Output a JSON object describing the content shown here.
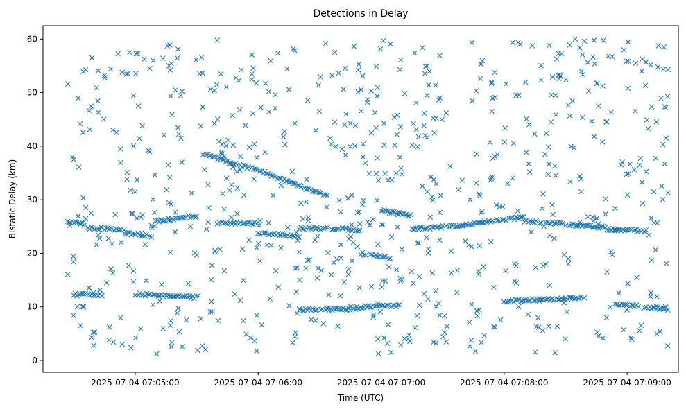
{
  "chart_data": {
    "type": "scatter",
    "title": "Detections in Delay",
    "xlabel": "Time (UTC)",
    "ylabel": "Bistatic Delay (km)",
    "marker": "x",
    "color": "#1f77b4",
    "grid": false,
    "legend": "none",
    "xlim": [
      "2025-07-04 07:04:15",
      "2025-07-04 07:09:25"
    ],
    "ylim": [
      -2.2,
      62.5
    ],
    "x_ticks": [
      "2025-07-04 07:05:00",
      "2025-07-04 07:06:00",
      "2025-07-04 07:07:00",
      "2025-07-04 07:08:00",
      "2025-07-04 07:09:00"
    ],
    "y_ticks": [
      0,
      10,
      20,
      30,
      40,
      50,
      60
    ],
    "x_start": "2025-07-04 07:04:27",
    "x_end": "2025-07-04 07:09:20",
    "tracks": [
      {
        "x": [
          "2025-07-04 07:04:27",
          "2025-07-04 07:04:37"
        ],
        "y": [
          26.0,
          25.2
        ]
      },
      {
        "x": [
          "2025-07-04 07:04:37",
          "2025-07-04 07:04:55"
        ],
        "y": [
          24.8,
          24.4
        ]
      },
      {
        "x": [
          "2025-07-04 07:04:55",
          "2025-07-04 07:05:08"
        ],
        "y": [
          23.8,
          23.2
        ]
      },
      {
        "x": [
          "2025-07-04 07:05:10",
          "2025-07-04 07:05:30"
        ],
        "y": [
          26.0,
          27.0
        ]
      },
      {
        "x": [
          "2025-07-04 07:04:30",
          "2025-07-04 07:04:45"
        ],
        "y": [
          12.3,
          12.3
        ]
      },
      {
        "x": [
          "2025-07-04 07:05:00",
          "2025-07-04 07:05:30"
        ],
        "y": [
          12.4,
          11.8
        ]
      },
      {
        "x": [
          "2025-07-04 07:05:33",
          "2025-07-04 07:06:00"
        ],
        "y": [
          38.5,
          35.5
        ]
      },
      {
        "x": [
          "2025-07-04 07:06:00",
          "2025-07-04 07:06:35"
        ],
        "y": [
          35.5,
          30.5
        ]
      },
      {
        "x": [
          "2025-07-04 07:05:40",
          "2025-07-04 07:06:00"
        ],
        "y": [
          25.7,
          25.6
        ]
      },
      {
        "x": [
          "2025-07-04 07:06:00",
          "2025-07-04 07:06:20"
        ],
        "y": [
          23.8,
          23.2
        ]
      },
      {
        "x": [
          "2025-07-04 07:06:20",
          "2025-07-04 07:06:50"
        ],
        "y": [
          24.8,
          24.4
        ]
      },
      {
        "x": [
          "2025-07-04 07:06:20",
          "2025-07-04 07:06:45"
        ],
        "y": [
          9.5,
          9.6
        ]
      },
      {
        "x": [
          "2025-07-04 07:06:45",
          "2025-07-04 07:07:10"
        ],
        "y": [
          9.9,
          10.2
        ]
      },
      {
        "x": [
          "2025-07-04 07:06:50",
          "2025-07-04 07:07:05"
        ],
        "y": [
          20.0,
          19.0
        ]
      },
      {
        "x": [
          "2025-07-04 07:07:00",
          "2025-07-04 07:07:15"
        ],
        "y": [
          28.0,
          27.0
        ]
      },
      {
        "x": [
          "2025-07-04 07:07:15",
          "2025-07-04 07:07:40"
        ],
        "y": [
          24.6,
          25.2
        ]
      },
      {
        "x": [
          "2025-07-04 07:07:40",
          "2025-07-04 07:08:10"
        ],
        "y": [
          25.3,
          26.8
        ]
      },
      {
        "x": [
          "2025-07-04 07:08:10",
          "2025-07-04 07:08:50"
        ],
        "y": [
          26.0,
          24.8
        ]
      },
      {
        "x": [
          "2025-07-04 07:08:50",
          "2025-07-04 07:09:10"
        ],
        "y": [
          24.5,
          24.2
        ]
      },
      {
        "x": [
          "2025-07-04 07:08:00",
          "2025-07-04 07:08:40"
        ],
        "y": [
          11.0,
          11.8
        ]
      },
      {
        "x": [
          "2025-07-04 07:08:55",
          "2025-07-04 07:09:20"
        ],
        "y": [
          10.5,
          9.6
        ]
      }
    ]
  }
}
